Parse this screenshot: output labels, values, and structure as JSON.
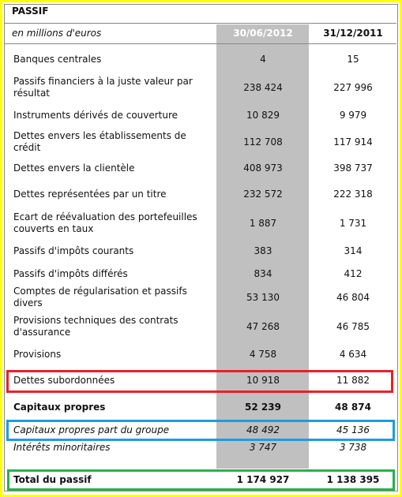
{
  "header": {
    "title": "PASSIF",
    "unit": "en millions d'euros",
    "columns": [
      "30/06/2012",
      "31/12/2011"
    ]
  },
  "rows": [
    {
      "label": "Banques centrales",
      "values": [
        "4",
        "15"
      ]
    },
    {
      "label": "Passifs financiers à la juste valeur par résultat",
      "values": [
        "238 424",
        "227 996"
      ]
    },
    {
      "label": "Instruments dérivés de couverture",
      "values": [
        "10 829",
        "9 979"
      ]
    },
    {
      "label": "Dettes envers les établissements de crédit",
      "values": [
        "112 708",
        "117 914"
      ]
    },
    {
      "label": "Dettes envers la clientèle",
      "values": [
        "408 973",
        "398 737"
      ]
    },
    {
      "label": "Dettes représentées par un titre",
      "values": [
        "232 572",
        "222 318"
      ]
    },
    {
      "label": "Ecart de réévaluation des portefeuilles couverts en taux",
      "values": [
        "1 887",
        "1 731"
      ]
    },
    {
      "label": "Passifs d'impôts courants",
      "values": [
        "383",
        "314"
      ]
    },
    {
      "label": "Passifs d'impôts différés",
      "values": [
        "834",
        "412"
      ]
    },
    {
      "label": "Comptes de régularisation et passifs divers",
      "values": [
        "53 130",
        "46 804"
      ]
    },
    {
      "label": "Provisions techniques des contrats d'assurance",
      "values": [
        "47 268",
        "46 785"
      ]
    },
    {
      "label": "Provisions",
      "values": [
        "4 758",
        "4 634"
      ]
    },
    {
      "label": "Dettes subordonnées",
      "values": [
        "10 918",
        "11 882"
      ]
    },
    {
      "label": "Capitaux propres",
      "values": [
        "52 239",
        "48 874"
      ]
    },
    {
      "label": "Capitaux propres part du groupe",
      "values": [
        "48 492",
        "45 136"
      ]
    },
    {
      "label": "Intérêts minoritaires",
      "values": [
        "3 747",
        "3 738"
      ]
    },
    {
      "label": "Total du passif",
      "values": [
        "1 174 927",
        "1 138 395"
      ]
    }
  ]
}
